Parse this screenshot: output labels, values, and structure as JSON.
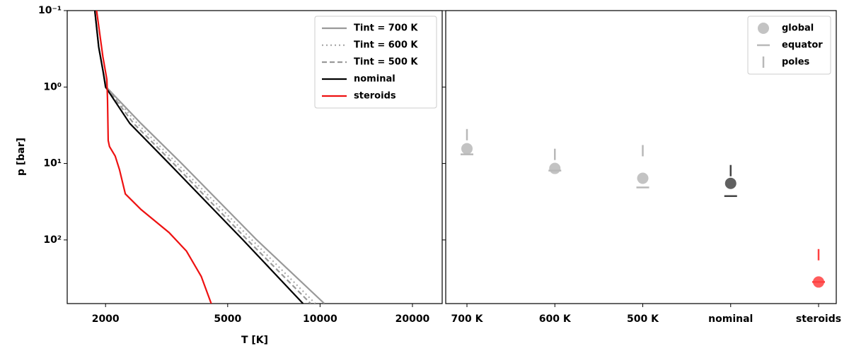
{
  "chart_data": [
    {
      "type": "line",
      "xlabel": "T [K]",
      "ylabel": "p [bar]",
      "xlog": true,
      "ylog": true,
      "yinvert": true,
      "xlim": [
        1500,
        25000
      ],
      "ylim": [
        0.1,
        680
      ],
      "xticks": [
        2000,
        5000,
        10000,
        20000
      ],
      "yticks": [
        {
          "value": 0.1,
          "label": "10⁻¹"
        },
        {
          "value": 1,
          "label": "10⁰"
        },
        {
          "value": 10,
          "label": "10¹"
        },
        {
          "value": 100,
          "label": "10²"
        }
      ],
      "legend": "upper right",
      "series": [
        {
          "name": "Tint = 700 K",
          "color": "#999999",
          "dash": "solid",
          "x": [
            1845,
            1900,
            1960,
            2010,
            2610,
            3540,
            6220,
            10330
          ],
          "values": [
            0.1,
            0.3,
            0.6,
            1,
            3,
            10,
            100,
            680
          ]
        },
        {
          "name": "Tint = 600 K",
          "color": "#aaaaaa",
          "dash": "dotted",
          "x": [
            1845,
            1900,
            1960,
            2010,
            2540,
            3420,
            6000,
            9650
          ],
          "values": [
            0.1,
            0.3,
            0.6,
            1,
            3,
            10,
            100,
            680
          ]
        },
        {
          "name": "Tint = 500 K",
          "color": "#999999",
          "dash": "dashed",
          "x": [
            1845,
            1900,
            1960,
            2010,
            2470,
            3330,
            5800,
            9320
          ],
          "values": [
            0.1,
            0.3,
            0.6,
            1,
            3,
            10,
            100,
            680
          ]
        },
        {
          "name": "nominal",
          "color": "#000000",
          "dash": "solid",
          "x": [
            1845,
            1900,
            1960,
            2000,
            2400,
            3220,
            5610,
            8800
          ],
          "values": [
            0.1,
            0.3,
            0.6,
            1,
            3,
            10,
            100,
            680
          ]
        },
        {
          "name": "steroids",
          "color": "#ee1111",
          "dash": "solid",
          "x": [
            1870,
            1960,
            2020,
            2030,
            2040,
            2060,
            2150,
            2220,
            2320,
            2610,
            3220,
            3670,
            4100,
            4420
          ],
          "values": [
            0.1,
            0.4,
            0.8,
            1.5,
            5,
            6,
            8,
            12,
            25,
            40,
            80,
            140,
            300,
            680
          ]
        }
      ]
    },
    {
      "type": "scatter",
      "ylog": true,
      "yinvert": true,
      "ylim": [
        0.1,
        680
      ],
      "yticks": [
        0.1,
        1,
        10,
        100
      ],
      "categories": [
        "700 K",
        "600 K",
        "500 K",
        "nominal",
        "steroids"
      ],
      "colors": [
        "#b8b8b8",
        "#b8b8b8",
        "#b8b8b8",
        "#444444",
        "#ff4040"
      ],
      "legend": "upper right",
      "series": [
        {
          "name": "global",
          "marker": "circle",
          "values": [
            6.4,
            11.6,
            15.6,
            18.2,
            355
          ]
        },
        {
          "name": "equator",
          "marker": "hline",
          "values": [
            7.6,
            12.4,
            20.6,
            26.7,
            355
          ]
        },
        {
          "name": "poles",
          "marker": "vline",
          "values": [
            4.2,
            7.6,
            6.8,
            12.4,
            156
          ]
        }
      ]
    }
  ]
}
